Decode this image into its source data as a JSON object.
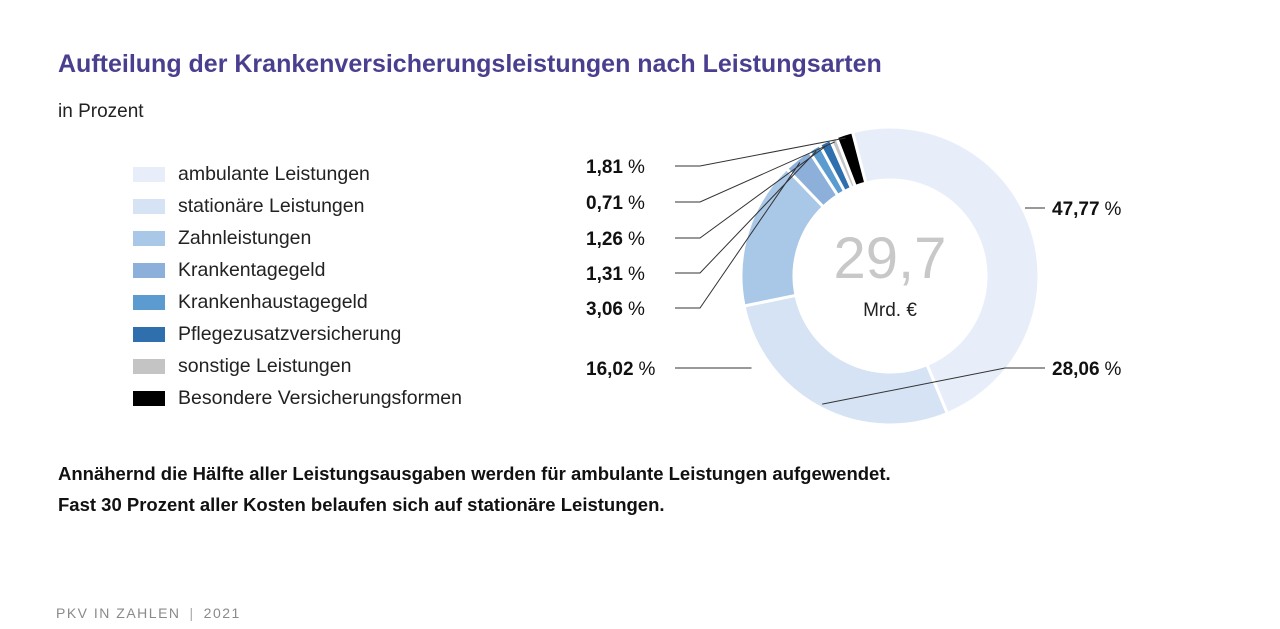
{
  "header": {
    "title": "Aufteilung der Krankenversicherungsleistungen nach Leistungsarten",
    "subtitle": "in Prozent"
  },
  "chart_data": {
    "type": "pie",
    "title": "Aufteilung der Krankenversicherungsleistungen nach Leistungsarten",
    "unit_label": "in Prozent",
    "center_total": "29,7",
    "center_unit": "Mrd. €",
    "categories": [
      "ambulante Leistungen",
      "stationäre Leistungen",
      "Zahnleistungen",
      "Krankentagegeld",
      "Krankenhaustagegeld",
      "Pflegezusatzversicherung",
      "sonstige Leistungen",
      "Besondere Versicherungsformen"
    ],
    "values": [
      47.77,
      28.06,
      16.02,
      3.06,
      1.31,
      1.26,
      0.71,
      1.81
    ],
    "value_labels": [
      "47,77",
      "28,06",
      "16,02",
      "3,06",
      "1,31",
      "1,26",
      "0,71",
      "1,81"
    ],
    "colors": [
      "#e8eef9",
      "#d5e3f4",
      "#a9c7e6",
      "#8db0da",
      "#5b9bd0",
      "#2f6fad",
      "#c4c4c4",
      "#000000"
    ],
    "percent_sign": "%",
    "legend_position": "left"
  },
  "summary": {
    "line1": "Annähernd die Hälfte aller Leistungsausgaben werden für ambulante Leistungen aufgewendet.",
    "line2": "Fast 30 Prozent aller Kosten belaufen sich auf stationäre Leistungen."
  },
  "footer": {
    "publication": "PKV IN ZAHLEN",
    "separator": "|",
    "year": "2021"
  }
}
